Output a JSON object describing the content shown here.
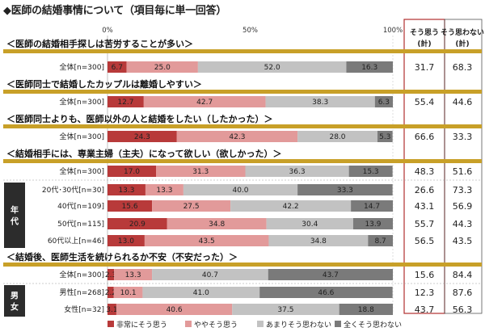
{
  "title": "◆医師の結婚事情について",
  "subtitle": "（項目毎に単一回答）",
  "colors": {
    "very": "#b83a3a",
    "somewhat": "#e29a9a",
    "not_much": "#c2c2c2",
    "not_at_all": "#7a7a7a",
    "gold": "#c8a028",
    "header_border": "#b03030"
  },
  "chart_data": {
    "type": "bar",
    "orientation": "horizontal-stacked-100",
    "xlim": [
      0,
      100
    ],
    "x_ticks": [
      "0%",
      "50%",
      "100%"
    ],
    "series_names": [
      "非常にそう思う",
      "ややそう思う",
      "あまりそう思わない",
      "全くそう思わない"
    ],
    "columns": [
      {
        "label": "そう思う",
        "sub": "(計)"
      },
      {
        "label": "そう思わない",
        "sub": "(計)"
      }
    ],
    "questions": [
      {
        "text": "＜医師の結婚相手探しは苦労することが多い＞",
        "rows": [
          {
            "label": "全体[n=300]",
            "values": [
              6.7,
              25.0,
              52.0,
              16.3
            ],
            "agree": "31.7",
            "disagree": "68.3"
          }
        ]
      },
      {
        "text": "＜医師同士で結婚したカップルは離婚しやすい＞",
        "rows": [
          {
            "label": "全体[n=300]",
            "values": [
              12.7,
              42.7,
              38.3,
              6.3
            ],
            "agree": "55.4",
            "disagree": "44.6"
          }
        ]
      },
      {
        "text": "＜医師同士よりも、医師以外の人と結婚をしたい（したかった）＞",
        "rows": [
          {
            "label": "全体[n=300]",
            "values": [
              24.3,
              42.3,
              28.0,
              5.3
            ],
            "agree": "66.6",
            "disagree": "33.3"
          }
        ]
      },
      {
        "text": "＜結婚相手には、専業主婦（主夫）になって欲しい（欲しかった）＞",
        "group": "年代",
        "rows": [
          {
            "label": "全体[n=300]",
            "values": [
              17.0,
              31.3,
              36.3,
              15.3
            ],
            "agree": "48.3",
            "disagree": "51.6"
          },
          {
            "label": "20代･30代[n=30]",
            "values": [
              13.3,
              13.3,
              40.0,
              33.3
            ],
            "agree": "26.6",
            "disagree": "73.3"
          },
          {
            "label": "40代[n=109]",
            "values": [
              15.6,
              27.5,
              42.2,
              14.7
            ],
            "agree": "43.1",
            "disagree": "56.9"
          },
          {
            "label": "50代[n=115]",
            "values": [
              20.9,
              34.8,
              30.4,
              13.9
            ],
            "agree": "55.7",
            "disagree": "44.3"
          },
          {
            "label": "60代以上[n=46]",
            "values": [
              13.0,
              43.5,
              34.8,
              8.7
            ],
            "agree": "56.5",
            "disagree": "43.5"
          }
        ]
      },
      {
        "text": "＜結婚後、医師生活を続けられるか不安（不安だった）＞",
        "group": "男女",
        "rows": [
          {
            "label": "全体[n=300]",
            "values": [
              2.3,
              13.3,
              40.7,
              43.7
            ],
            "agree": "15.6",
            "disagree": "84.4"
          },
          {
            "label": "男性[n=268]",
            "values": [
              2.2,
              10.1,
              41.0,
              46.6
            ],
            "agree": "12.3",
            "disagree": "87.6"
          },
          {
            "label": "女性[n=32]",
            "values": [
              3.1,
              40.6,
              37.5,
              18.8
            ],
            "agree": "43.7",
            "disagree": "56.3"
          }
        ]
      }
    ]
  }
}
